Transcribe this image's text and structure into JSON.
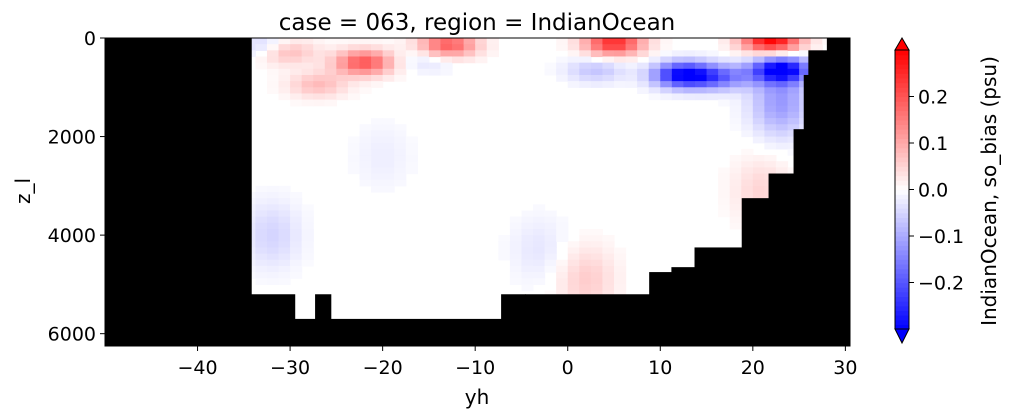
{
  "chart_data": {
    "type": "heatmap",
    "title": "case = 063, region = IndianOcean",
    "xlabel": "yh",
    "ylabel": "z_l",
    "xlim": [
      -50,
      30.5
    ],
    "ylim": [
      6250,
      0
    ],
    "y_inverted": true,
    "xticks": [
      -40,
      -30,
      -20,
      -10,
      0,
      10,
      20,
      30
    ],
    "xtick_labels": [
      "−40",
      "−30",
      "−20",
      "−10",
      "0",
      "10",
      "20",
      "30"
    ],
    "yticks": [
      0,
      2000,
      4000,
      6000
    ],
    "ytick_labels": [
      "0",
      "2000",
      "4000",
      "6000"
    ],
    "colorbar": {
      "label": "IndianOcean, so_bias (psu)",
      "vmin": -0.3,
      "vmax": 0.3,
      "colormap": "bwr",
      "extend": "both",
      "ticks": [
        -0.2,
        -0.1,
        0.0,
        0.1,
        0.2
      ],
      "tick_labels": [
        "−0.2",
        "−0.1",
        "0.0",
        "0.1",
        "0.2"
      ]
    },
    "mask_color": "#000000",
    "land_bottom_profile": [
      {
        "lat_from": -50,
        "lat_to": -34.2,
        "depth": 0
      },
      {
        "lat_from": -34.2,
        "lat_to": -29.5,
        "depth": 5200
      },
      {
        "lat_from": -29.5,
        "lat_to": -27.3,
        "depth": 5700
      },
      {
        "lat_from": -27.3,
        "lat_to": -25.6,
        "depth": 5200
      },
      {
        "lat_from": -25.6,
        "lat_to": -7.2,
        "depth": 5700
      },
      {
        "lat_from": -7.2,
        "lat_to": -4.6,
        "depth": 5200
      },
      {
        "lat_from": -4.6,
        "lat_to": 8.8,
        "depth": 5200
      },
      {
        "lat_from": 8.8,
        "lat_to": 11.2,
        "depth": 4750
      },
      {
        "lat_from": 11.2,
        "lat_to": 13.7,
        "depth": 4650
      },
      {
        "lat_from": 13.7,
        "lat_to": 18.8,
        "depth": 4250
      },
      {
        "lat_from": 18.8,
        "lat_to": 21.7,
        "depth": 3250
      },
      {
        "lat_from": 21.7,
        "lat_to": 24.4,
        "depth": 2750
      },
      {
        "lat_from": 24.4,
        "lat_to": 25.5,
        "depth": 1850
      },
      {
        "lat_from": 25.5,
        "lat_to": 26.0,
        "depth": 750
      },
      {
        "lat_from": 26.0,
        "lat_to": 28.0,
        "depth": 250
      },
      {
        "lat_from": 28.0,
        "lat_to": 30.5,
        "depth": 0
      }
    ],
    "bias_features": [
      {
        "lat": 5,
        "depth": 100,
        "value": 0.25
      },
      {
        "lat": -13,
        "depth": 150,
        "value": 0.2
      },
      {
        "lat": 22,
        "depth": 50,
        "value": 0.3
      },
      {
        "lat": -22,
        "depth": 500,
        "value": 0.2
      },
      {
        "lat": -31,
        "depth": 250,
        "value": 0.18
      },
      {
        "lat": -27,
        "depth": 950,
        "value": 0.08
      },
      {
        "lat": -32,
        "depth": 200,
        "value": -0.15
      },
      {
        "lat": -15,
        "depth": 420,
        "value": -0.05
      },
      {
        "lat": 3,
        "depth": 650,
        "value": -0.07
      },
      {
        "lat": 12.5,
        "depth": 750,
        "value": -0.3
      },
      {
        "lat": 16.5,
        "depth": 800,
        "value": -0.15
      },
      {
        "lat": 23,
        "depth": 650,
        "value": -0.3
      },
      {
        "lat": 23,
        "depth": 1300,
        "value": -0.12
      },
      {
        "lat": -20,
        "depth": 2400,
        "value": -0.02
      },
      {
        "lat": 21,
        "depth": 3100,
        "value": 0.05
      },
      {
        "lat": 2,
        "depth": 4900,
        "value": 0.06
      },
      {
        "lat": -32,
        "depth": 4000,
        "value": -0.05
      },
      {
        "lat": -3,
        "depth": 4300,
        "value": -0.03
      }
    ]
  }
}
